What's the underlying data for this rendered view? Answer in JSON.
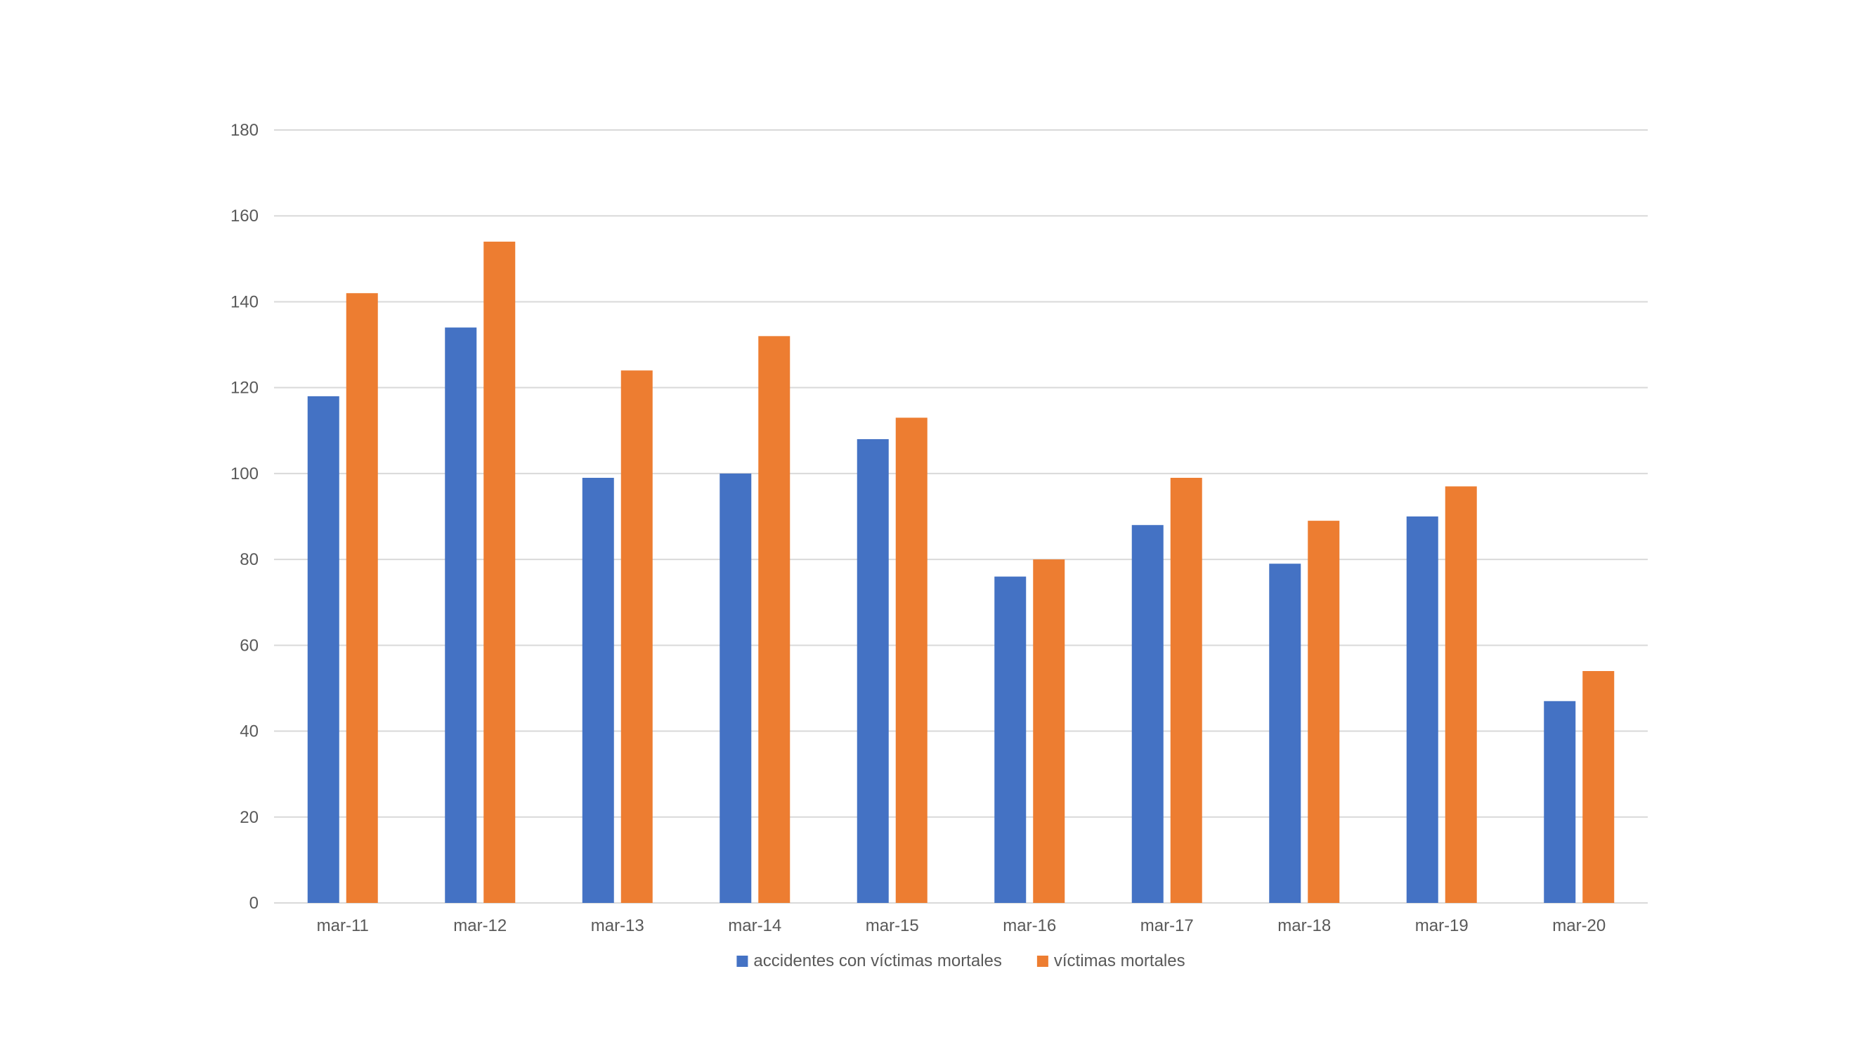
{
  "chart_data": {
    "type": "bar",
    "title": "",
    "xlabel": "",
    "ylabel": "",
    "categories": [
      "mar-11",
      "mar-12",
      "mar-13",
      "mar-14",
      "mar-15",
      "mar-16",
      "mar-17",
      "mar-18",
      "mar-19",
      "mar-20"
    ],
    "series": [
      {
        "name": "accidentes con víctimas mortales",
        "color": "#4472c4",
        "values": [
          118,
          134,
          99,
          100,
          108,
          76,
          88,
          79,
          90,
          47
        ]
      },
      {
        "name": "víctimas mortales",
        "color": "#ed7d31",
        "values": [
          142,
          154,
          124,
          132,
          113,
          80,
          99,
          89,
          97,
          54
        ]
      }
    ],
    "ylim": [
      0,
      180
    ],
    "yticks": [
      0,
      20,
      40,
      60,
      80,
      100,
      120,
      140,
      160,
      180
    ],
    "grid": true,
    "legend_position": "bottom"
  }
}
